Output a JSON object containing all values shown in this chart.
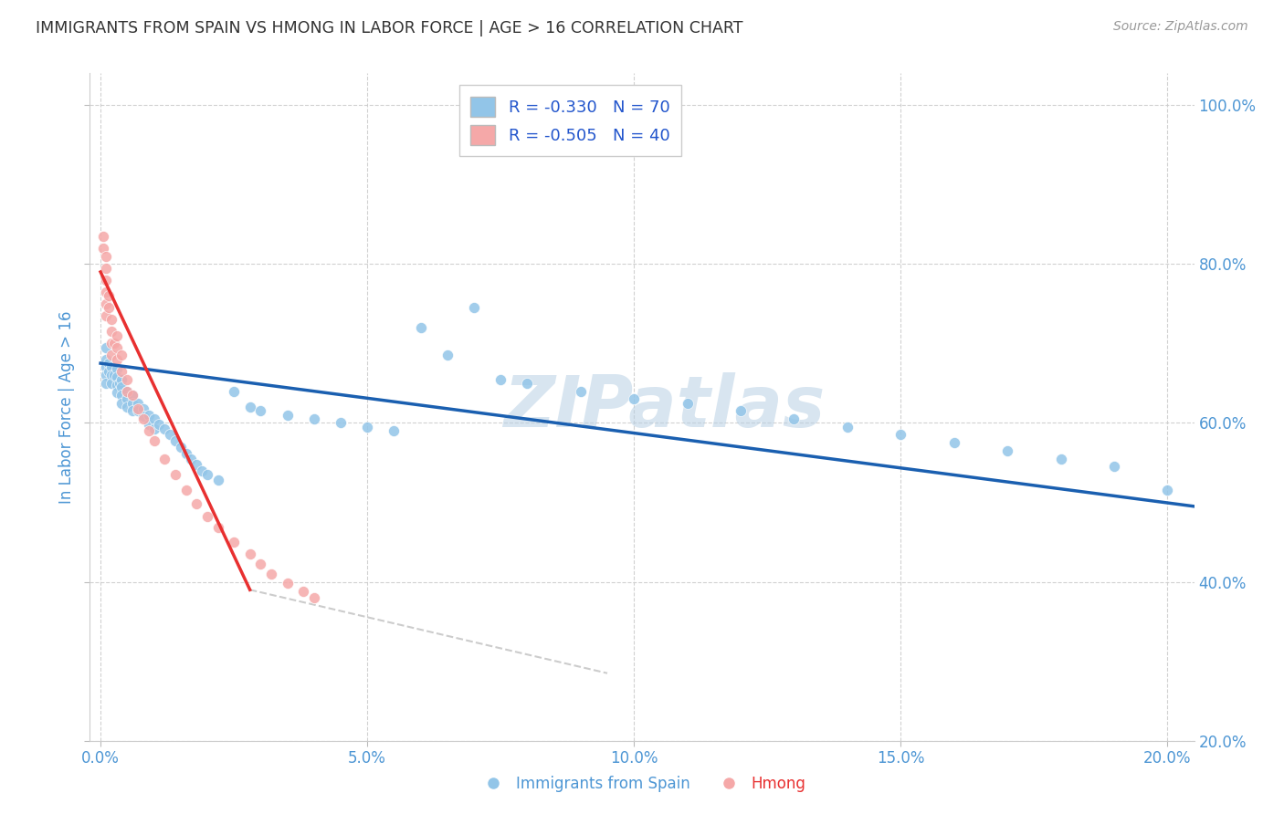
{
  "title": "IMMIGRANTS FROM SPAIN VS HMONG IN LABOR FORCE | AGE > 16 CORRELATION CHART",
  "source": "Source: ZipAtlas.com",
  "ylabel": "In Labor Force | Age > 16",
  "x_ticks": [
    0.0,
    0.05,
    0.1,
    0.15,
    0.2
  ],
  "x_tick_labels": [
    "0.0%",
    "5.0%",
    "10.0%",
    "15.0%",
    "20.0%"
  ],
  "y_ticks": [
    0.2,
    0.4,
    0.6,
    0.8,
    1.0
  ],
  "y_tick_labels": [
    "20.0%",
    "40.0%",
    "60.0%",
    "80.0%",
    "100.0%"
  ],
  "xlim": [
    -0.002,
    0.205
  ],
  "ylim": [
    0.22,
    1.04
  ],
  "legend_R1": "R = -0.330",
  "legend_N1": "N = 70",
  "legend_R2": "R = -0.505",
  "legend_N2": "N = 40",
  "legend_label1": "Immigrants from Spain",
  "legend_label2": "Hmong",
  "blue_scatter": "#92c5e8",
  "pink_scatter": "#f5a8a8",
  "blue_line": "#1a5fb0",
  "pink_line": "#e83030",
  "dash_line": "#cccccc",
  "watermark": "ZIPatlas",
  "watermark_color": "#b8d0e4",
  "title_color": "#333333",
  "axis_color": "#4d96d4",
  "legend_text_color": "#2255cc",
  "spain_x": [
    0.001,
    0.001,
    0.001,
    0.001,
    0.001,
    0.0015,
    0.0015,
    0.002,
    0.002,
    0.002,
    0.0025,
    0.003,
    0.003,
    0.003,
    0.003,
    0.0035,
    0.004,
    0.004,
    0.004,
    0.004,
    0.005,
    0.005,
    0.005,
    0.006,
    0.006,
    0.006,
    0.007,
    0.007,
    0.008,
    0.008,
    0.009,
    0.009,
    0.01,
    0.01,
    0.011,
    0.012,
    0.013,
    0.014,
    0.015,
    0.016,
    0.017,
    0.018,
    0.019,
    0.02,
    0.022,
    0.025,
    0.028,
    0.03,
    0.035,
    0.04,
    0.045,
    0.05,
    0.055,
    0.06,
    0.065,
    0.07,
    0.075,
    0.08,
    0.09,
    0.1,
    0.11,
    0.12,
    0.13,
    0.14,
    0.15,
    0.16,
    0.17,
    0.18,
    0.19,
    0.2
  ],
  "spain_y": [
    0.695,
    0.68,
    0.67,
    0.66,
    0.65,
    0.675,
    0.665,
    0.67,
    0.66,
    0.65,
    0.66,
    0.668,
    0.658,
    0.648,
    0.638,
    0.65,
    0.655,
    0.645,
    0.635,
    0.625,
    0.64,
    0.63,
    0.62,
    0.635,
    0.625,
    0.615,
    0.625,
    0.615,
    0.618,
    0.608,
    0.61,
    0.598,
    0.605,
    0.592,
    0.598,
    0.592,
    0.585,
    0.578,
    0.57,
    0.562,
    0.555,
    0.548,
    0.54,
    0.535,
    0.528,
    0.64,
    0.62,
    0.615,
    0.61,
    0.605,
    0.6,
    0.595,
    0.59,
    0.72,
    0.685,
    0.745,
    0.655,
    0.65,
    0.64,
    0.63,
    0.625,
    0.615,
    0.605,
    0.595,
    0.585,
    0.575,
    0.565,
    0.555,
    0.545,
    0.515
  ],
  "hmong_x": [
    0.0005,
    0.0005,
    0.001,
    0.001,
    0.001,
    0.001,
    0.001,
    0.001,
    0.0015,
    0.0015,
    0.002,
    0.002,
    0.002,
    0.002,
    0.0025,
    0.003,
    0.003,
    0.003,
    0.004,
    0.004,
    0.005,
    0.005,
    0.006,
    0.007,
    0.008,
    0.009,
    0.01,
    0.012,
    0.014,
    0.016,
    0.018,
    0.02,
    0.022,
    0.025,
    0.028,
    0.03,
    0.032,
    0.035,
    0.038,
    0.04
  ],
  "hmong_y": [
    0.835,
    0.82,
    0.81,
    0.795,
    0.78,
    0.765,
    0.75,
    0.735,
    0.76,
    0.745,
    0.73,
    0.715,
    0.7,
    0.685,
    0.7,
    0.71,
    0.695,
    0.68,
    0.685,
    0.665,
    0.655,
    0.64,
    0.635,
    0.618,
    0.605,
    0.59,
    0.578,
    0.555,
    0.535,
    0.515,
    0.498,
    0.482,
    0.468,
    0.45,
    0.435,
    0.422,
    0.41,
    0.398,
    0.388,
    0.38
  ],
  "blue_trendline_x": [
    0.0,
    0.205
  ],
  "blue_trendline_y": [
    0.675,
    0.495
  ],
  "pink_trendline_x": [
    0.0,
    0.028
  ],
  "pink_trendline_y": [
    0.79,
    0.39
  ],
  "dash_trendline_x": [
    0.028,
    0.095
  ],
  "dash_trendline_y": [
    0.39,
    0.285
  ]
}
